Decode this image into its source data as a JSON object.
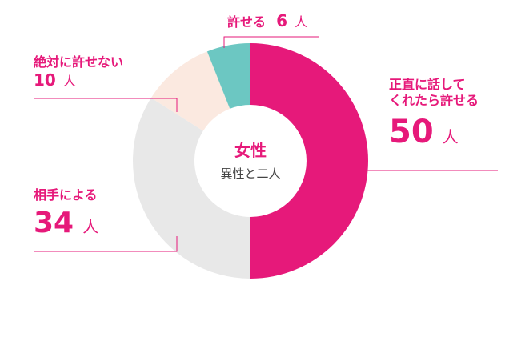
{
  "chart_data": {
    "type": "pie",
    "donut": true,
    "title": "女性",
    "subtitle": "異性と二人",
    "unit": "人",
    "slices": [
      {
        "label": "正直に話してくれたら許せる",
        "value": 50,
        "color": "#e6197a"
      },
      {
        "label": "相手による",
        "value": 34,
        "color": "#e8e8e8"
      },
      {
        "label": "絶対に許せない",
        "value": 10,
        "color": "#fbe9e0"
      },
      {
        "label": "許せる",
        "value": 6,
        "color": "#6cc7c2"
      }
    ]
  },
  "labels": {
    "honest_line1": "正直に話して",
    "honest_line2": "くれたら許せる",
    "honest_value": "50",
    "depends": "相手による",
    "depends_value": "34",
    "never": "絶対に許せない",
    "never_value": "10",
    "ok": "許せる",
    "ok_value": "6",
    "unit": "人"
  },
  "colors": {
    "accent": "#e6197a",
    "leader_line": "#e6197a"
  }
}
